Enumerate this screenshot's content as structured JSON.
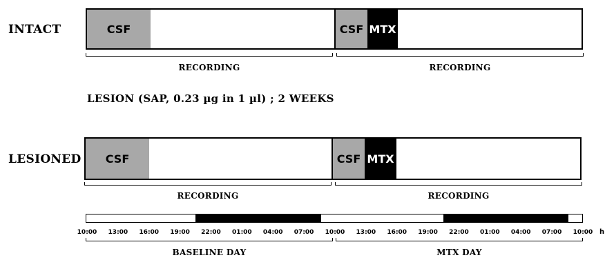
{
  "rows": {
    "intact": {
      "label": "INTACT",
      "segments": {
        "csf1": "CSF",
        "csf2": "CSF",
        "mtx": "MTX"
      },
      "recordings": [
        "RECORDING",
        "RECORDING"
      ]
    },
    "lesioned": {
      "label": "LESIONED",
      "segments": {
        "csf1": "CSF",
        "csf2": "CSF",
        "mtx": "MTX"
      },
      "recordings": [
        "RECORDING",
        "RECORDING"
      ]
    }
  },
  "lesion_note": "LESION (SAP, 0.23 µg in 1 µl) ; 2 WEEKS",
  "timeline": {
    "unit": "h",
    "ticks": [
      "10:00",
      "13:00",
      "16:00",
      "19:00",
      "22:00",
      "01:00",
      "04:00",
      "07:00",
      "10:00",
      "13:00",
      "16:00",
      "19:00",
      "22:00",
      "01:00",
      "04:00",
      "07:00",
      "10:00"
    ],
    "days": [
      "BASELINE DAY",
      "MTX DAY"
    ]
  },
  "colors": {
    "csf": "#a8a8a8",
    "mtx": "#000000",
    "night": "#000000"
  }
}
